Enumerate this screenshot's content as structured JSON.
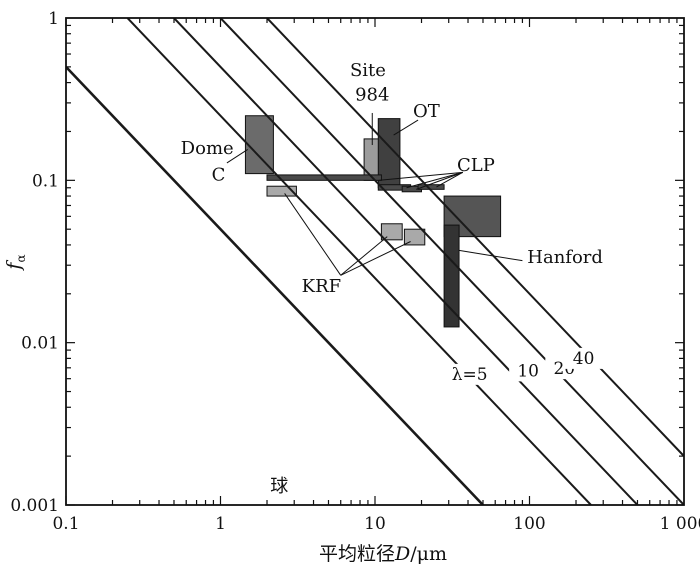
{
  "chart_data": {
    "type": "scatter",
    "title": "",
    "xlabel": {
      "prefix": "平均粒径",
      "var": "D",
      "unit": "/μm"
    },
    "ylabel": {
      "var": "f",
      "sub": "α"
    },
    "xscale": "log",
    "yscale": "log",
    "xlim": [
      0.1,
      1000
    ],
    "ylim": [
      0.001,
      1
    ],
    "xticks": [
      {
        "v": 0.1,
        "label": "0.1"
      },
      {
        "v": 1,
        "label": "1"
      },
      {
        "v": 10,
        "label": "10"
      },
      {
        "v": 100,
        "label": "100"
      },
      {
        "v": 1000,
        "label": "1 000"
      }
    ],
    "yticks": [
      {
        "v": 0.001,
        "label": "0.001"
      },
      {
        "v": 0.01,
        "label": "0.01"
      },
      {
        "v": 0.1,
        "label": "0.1"
      },
      {
        "v": 1,
        "label": "1"
      }
    ],
    "lines": [
      {
        "label": "球",
        "x": [
          0.1,
          50
        ],
        "y": [
          0.5,
          0.001
        ]
      },
      {
        "label": "λ=5",
        "x": [
          0.25,
          250
        ],
        "y": [
          1,
          0.001
        ]
      },
      {
        "label": "10",
        "x": [
          0.5,
          500
        ],
        "y": [
          1,
          0.001
        ]
      },
      {
        "label": "20",
        "x": [
          1,
          1000
        ],
        "y": [
          1,
          0.001
        ]
      },
      {
        "label": "40",
        "x": [
          2,
          1000
        ],
        "y": [
          1,
          0.002
        ]
      }
    ],
    "regions": [
      {
        "group": "Dome C",
        "x": [
          1.45,
          2.2
        ],
        "y": [
          0.11,
          0.25
        ],
        "fill": "#6b6b6b"
      },
      {
        "group": "Site 984",
        "x": [
          8.5,
          11.5
        ],
        "y": [
          0.1,
          0.18
        ],
        "fill": "#9c9c9c"
      },
      {
        "group": "OT",
        "x": [
          10.5,
          14.5
        ],
        "y": [
          0.09,
          0.24
        ],
        "fill": "#404040"
      },
      {
        "group": "CLP",
        "x": [
          2,
          11
        ],
        "y": [
          0.1,
          0.108
        ],
        "fill": "#4a4a4a"
      },
      {
        "group": "CLP",
        "x": [
          10.5,
          17
        ],
        "y": [
          0.087,
          0.094
        ],
        "fill": "#4a4a4a"
      },
      {
        "group": "CLP",
        "x": [
          15,
          20
        ],
        "y": [
          0.085,
          0.092
        ],
        "fill": "#4a4a4a"
      },
      {
        "group": "CLP",
        "x": [
          19,
          28
        ],
        "y": [
          0.088,
          0.094
        ],
        "fill": "#4a4a4a"
      },
      {
        "group": "KRF",
        "x": [
          2,
          3.1
        ],
        "y": [
          0.08,
          0.092
        ],
        "fill": "#a9a9a9"
      },
      {
        "group": "KRF",
        "x": [
          11,
          15
        ],
        "y": [
          0.043,
          0.054
        ],
        "fill": "#a9a9a9"
      },
      {
        "group": "KRF",
        "x": [
          15.5,
          21
        ],
        "y": [
          0.04,
          0.05
        ],
        "fill": "#a9a9a9"
      },
      {
        "group": "Hanford",
        "x": [
          28,
          65
        ],
        "y": [
          0.045,
          0.08
        ],
        "fill": "#555555"
      },
      {
        "group": "Hanford",
        "x": [
          28,
          35
        ],
        "y": [
          0.0125,
          0.053
        ],
        "fill": "#333333"
      }
    ],
    "annotations": [
      {
        "label": "Site",
        "x": 9,
        "y": 0.44
      },
      {
        "label": "984",
        "x": 9.6,
        "y": 0.31
      },
      {
        "label": "OT",
        "x": 21.5,
        "y": 0.245
      },
      {
        "label": "Dome",
        "x": 0.82,
        "y": 0.145
      },
      {
        "label": "C",
        "x": 0.97,
        "y": 0.1
      },
      {
        "label": "CLP",
        "x": 45,
        "y": 0.114
      },
      {
        "label": "KRF",
        "x": 4.5,
        "y": 0.0205
      },
      {
        "label": "Hanford",
        "x": 170,
        "y": 0.031
      },
      {
        "label": "球",
        "x": 2.4,
        "y": 0.0012
      }
    ],
    "grid": false
  }
}
